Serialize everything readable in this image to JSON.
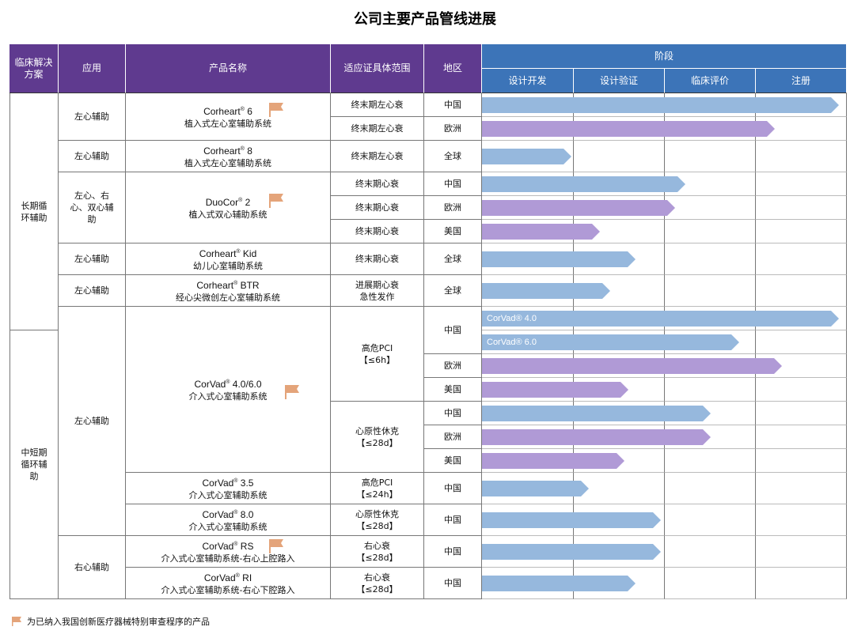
{
  "title": "公司主要产品管线进展",
  "headers": {
    "solution": "临床解决方案",
    "application": "应用",
    "product": "产品名称",
    "indication": "适应证具体范围",
    "region": "地区",
    "stage": "阶段",
    "stages": [
      "设计开发",
      "设计验证",
      "临床评价",
      "注册"
    ]
  },
  "colors": {
    "china_bar": "#96b8dd",
    "overseas_bar": "#b09ad6",
    "flag": "#e4a47a",
    "header_purple": "#5f3a8f",
    "header_blue": "#3c74b8"
  },
  "icons": {
    "flag": "flag-icon"
  },
  "solutions": [
    "长期循环辅助",
    "中短期循环辅助"
  ],
  "applications": [
    "左心辅助",
    "左心辅助",
    "左心、右心、双心辅助",
    "左心辅助",
    "左心辅助",
    "左心辅助",
    "右心辅助"
  ],
  "products": [
    {
      "brand": "Corheart",
      "model": "6",
      "desc": "植入式左心室辅助系统",
      "flag": true
    },
    {
      "brand": "Corheart",
      "model": "8",
      "desc": "植入式左心室辅助系统",
      "flag": false
    },
    {
      "brand": "DuoCor",
      "model": "2",
      "desc": "植入式双心辅助系统",
      "flag": true
    },
    {
      "brand": "Corheart",
      "model": "Kid",
      "desc": "幼儿心室辅助系统",
      "flag": false
    },
    {
      "brand": "Corheart",
      "model": "BTR",
      "desc": "经心尖微创左心室辅助系统",
      "flag": false
    },
    {
      "brand": "CorVad",
      "model": "4.0/6.0",
      "desc": "介入式心室辅助系统",
      "flag": true
    },
    {
      "brand": "CorVad",
      "model": "3.5",
      "desc": "介入式心室辅助系统",
      "flag": false
    },
    {
      "brand": "CorVad",
      "model": "8.0",
      "desc": "介入式心室辅助系统",
      "flag": false
    },
    {
      "brand": "CorVad",
      "model": "RS",
      "desc": "介入式心室辅助系统-右心上腔路入",
      "flag": true
    },
    {
      "brand": "CorVad",
      "model": "RI",
      "desc": "介入式心室辅助系统-右心下腔路入",
      "flag": false
    }
  ],
  "indications": [
    [
      "终末期左心衰"
    ],
    [
      "终末期左心衰"
    ],
    [
      "终末期左心衰"
    ],
    [
      "终末期心衰"
    ],
    [
      "终末期心衰"
    ],
    [
      "终末期心衰"
    ],
    [
      "终末期心衰"
    ],
    [
      "进展期心衰",
      "急性发作"
    ],
    [
      "高危PCI",
      "【≤6h】"
    ],
    [
      "心原性休克",
      "【≤28d】"
    ],
    [
      "高危PCI",
      "【≤24h】"
    ],
    [
      "心原性休克",
      "【≤28d】"
    ],
    [
      "右心衰",
      "【≤28d】"
    ],
    [
      "右心衰",
      "【≤28d】"
    ]
  ],
  "regions": [
    "中国",
    "欧洲",
    "全球",
    "中国",
    "欧洲",
    "美国",
    "全球",
    "全球",
    "中国",
    "欧洲",
    "美国",
    "中国",
    "欧洲",
    "美国",
    "中国",
    "中国",
    "中国",
    "中国"
  ],
  "pipeline": [
    {
      "product": "Corheart 6",
      "region": "中国",
      "progress": 1.0,
      "color": "china"
    },
    {
      "product": "Corheart 6",
      "region": "欧洲",
      "progress": 0.82,
      "color": "overseas"
    },
    {
      "product": "Corheart 8",
      "region": "全球",
      "progress": 0.25,
      "color": "china"
    },
    {
      "product": "DuoCor 2",
      "region": "中国",
      "progress": 0.57,
      "color": "china"
    },
    {
      "product": "DuoCor 2",
      "region": "欧洲",
      "progress": 0.54,
      "color": "overseas"
    },
    {
      "product": "DuoCor 2",
      "region": "美国",
      "progress": 0.33,
      "color": "overseas"
    },
    {
      "product": "Corheart Kid",
      "region": "全球",
      "progress": 0.43,
      "color": "china"
    },
    {
      "product": "Corheart BTR",
      "region": "全球",
      "progress": 0.36,
      "color": "china"
    },
    {
      "product": "CorVad 4.0/6.0",
      "region": "中国",
      "progress": 1.0,
      "color": "china",
      "label": "CorVad® 4.0"
    },
    {
      "product": "CorVad 4.0/6.0",
      "region": "中国",
      "progress": 0.72,
      "color": "china",
      "label": "CorVad® 6.0"
    },
    {
      "product": "CorVad 4.0/6.0",
      "region": "欧洲",
      "progress": 0.84,
      "color": "overseas"
    },
    {
      "product": "CorVad 4.0/6.0",
      "region": "美国",
      "progress": 0.41,
      "color": "overseas"
    },
    {
      "product": "CorVad 4.0/6.0",
      "region": "中国",
      "progress": 0.64,
      "color": "china"
    },
    {
      "product": "CorVad 4.0/6.0",
      "region": "欧洲",
      "progress": 0.64,
      "color": "overseas"
    },
    {
      "product": "CorVad 4.0/6.0",
      "region": "美国",
      "progress": 0.4,
      "color": "overseas"
    },
    {
      "product": "CorVad 3.5",
      "region": "中国",
      "progress": 0.3,
      "color": "china"
    },
    {
      "product": "CorVad 8.0",
      "region": "中国",
      "progress": 0.5,
      "color": "china"
    },
    {
      "product": "CorVad RS",
      "region": "中国",
      "progress": 0.5,
      "color": "china"
    },
    {
      "product": "CorVad RI",
      "region": "中国",
      "progress": 0.43,
      "color": "china"
    }
  ],
  "footnote": "为已纳入我国创新医疗器械特别审查程序的产品"
}
